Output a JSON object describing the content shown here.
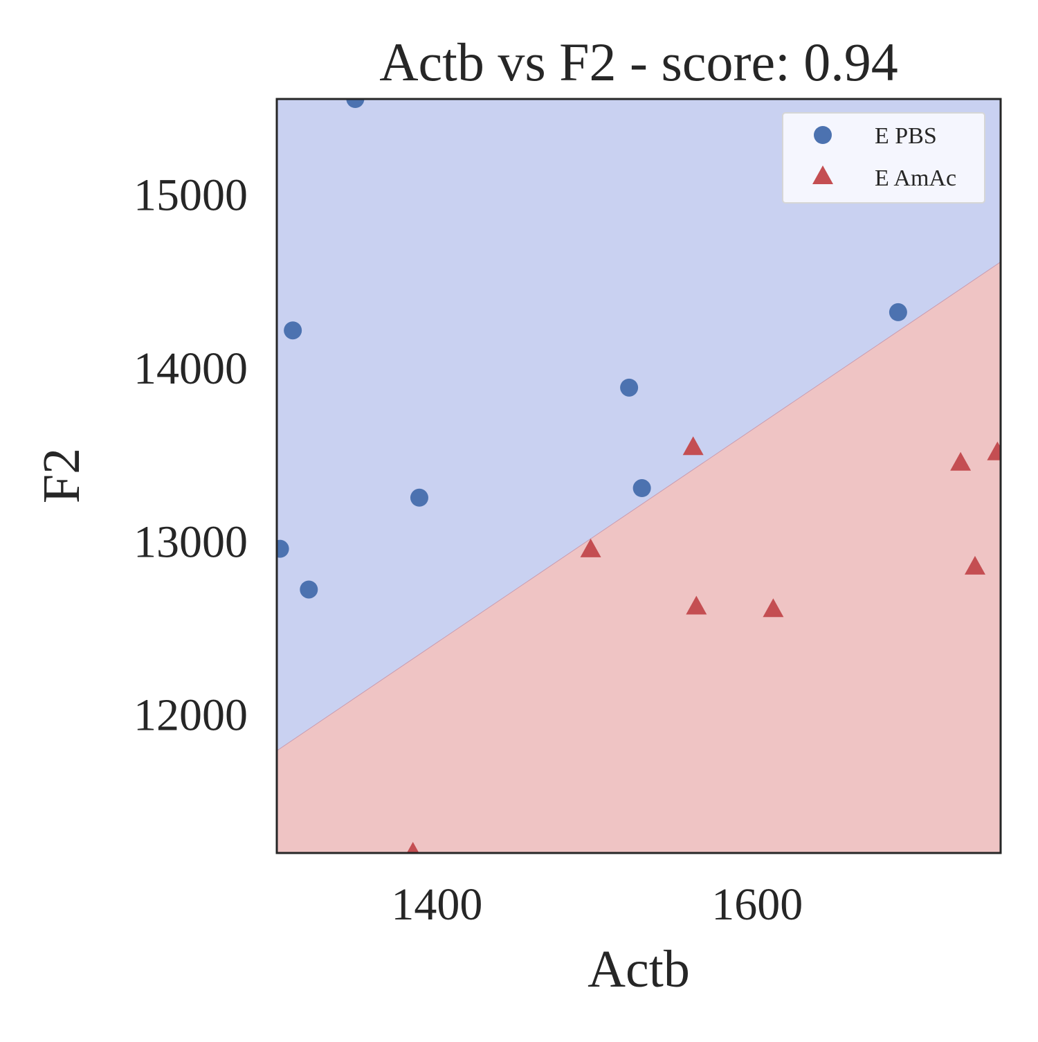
{
  "chart_data": {
    "type": "scatter",
    "title": "Actb vs F2 - score: 0.94",
    "xlabel": "Actb",
    "ylabel": "F2",
    "xlim": [
      1300,
      1752
    ],
    "ylim": [
      11200,
      15550
    ],
    "x_ticks": [
      1400,
      1600
    ],
    "y_ticks": [
      12000,
      13000,
      14000,
      15000
    ],
    "grid": false,
    "legend_position": "top-right",
    "decision_boundary": {
      "points": [
        [
          1300,
          11790
        ],
        [
          1752,
          14610
        ]
      ],
      "above_class": "E PBS",
      "below_class": "E AmAc"
    },
    "series": [
      {
        "name": "E PBS",
        "marker": "circle",
        "color": "#4c72b0",
        "region_color": "#c9d1f1",
        "points": [
          [
            1349,
            15550
          ],
          [
            1310,
            14215
          ],
          [
            1320,
            12720
          ],
          [
            1302,
            12955
          ],
          [
            1389,
            13250
          ],
          [
            1520,
            13885
          ],
          [
            1528,
            13305
          ],
          [
            1688,
            14320
          ]
        ]
      },
      {
        "name": "E AmAc",
        "marker": "triangle",
        "color": "#c44e52",
        "region_color": "#efc4c4",
        "points": [
          [
            1560,
            13540
          ],
          [
            1496,
            12950
          ],
          [
            1562,
            12620
          ],
          [
            1610,
            12605
          ],
          [
            1727,
            13450
          ],
          [
            1736,
            12850
          ],
          [
            1750,
            13510
          ],
          [
            1385,
            11200
          ]
        ]
      }
    ]
  }
}
